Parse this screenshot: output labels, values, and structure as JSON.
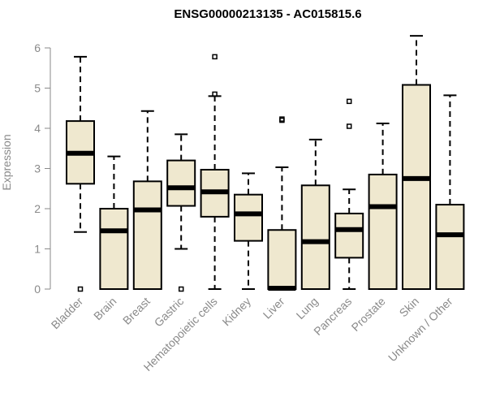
{
  "chart_data": {
    "type": "boxplot",
    "title": "ENSG00000213135 - AC015815.6",
    "ylabel": "Expression",
    "xlabel": "",
    "ylim": [
      0,
      6.3
    ],
    "yticks": [
      0,
      1,
      2,
      3,
      4,
      5,
      6
    ],
    "colors": {
      "box_fill": "#efe8cf",
      "box_stroke": "#000000",
      "axis": "#8a8a8a"
    },
    "categories": [
      "Bladder",
      "Brain",
      "Breast",
      "Gastric",
      "Hematopoietic cells",
      "Kidney",
      "Liver",
      "Lung",
      "Pancreas",
      "Prostate",
      "Skin",
      "Unknown / Other"
    ],
    "boxes": [
      {
        "category": "Bladder",
        "whisker_low": 1.42,
        "q1": 2.62,
        "median": 3.38,
        "q3": 4.18,
        "whisker_high": 5.78,
        "outliers": [
          0.0
        ]
      },
      {
        "category": "Brain",
        "whisker_low": 0.0,
        "q1": 0.0,
        "median": 1.45,
        "q3": 2.0,
        "whisker_high": 3.3,
        "outliers": []
      },
      {
        "category": "Breast",
        "whisker_low": 0.0,
        "q1": 0.0,
        "median": 1.97,
        "q3": 2.68,
        "whisker_high": 4.43,
        "outliers": []
      },
      {
        "category": "Gastric",
        "whisker_low": 1.0,
        "q1": 2.07,
        "median": 2.52,
        "q3": 3.2,
        "whisker_high": 3.85,
        "outliers": [
          0.0
        ]
      },
      {
        "category": "Hematopoietic cells",
        "whisker_low": 0.0,
        "q1": 1.8,
        "median": 2.42,
        "q3": 2.97,
        "whisker_high": 4.8,
        "outliers": [
          5.78,
          4.85
        ]
      },
      {
        "category": "Kidney",
        "whisker_low": 0.0,
        "q1": 1.2,
        "median": 1.87,
        "q3": 2.35,
        "whisker_high": 2.88,
        "outliers": []
      },
      {
        "category": "Liver",
        "whisker_low": 0.0,
        "q1": 0.0,
        "median": 0.02,
        "q3": 1.47,
        "whisker_high": 3.03,
        "outliers": [
          4.2,
          4.23
        ]
      },
      {
        "category": "Lung",
        "whisker_low": 0.0,
        "q1": 0.0,
        "median": 1.18,
        "q3": 2.58,
        "whisker_high": 3.72,
        "outliers": []
      },
      {
        "category": "Pancreas",
        "whisker_low": 0.0,
        "q1": 0.78,
        "median": 1.48,
        "q3": 1.88,
        "whisker_high": 2.48,
        "outliers": [
          4.67,
          4.05
        ]
      },
      {
        "category": "Prostate",
        "whisker_low": 0.0,
        "q1": 0.0,
        "median": 2.05,
        "q3": 2.85,
        "whisker_high": 4.12,
        "outliers": []
      },
      {
        "category": "Skin",
        "whisker_low": 0.0,
        "q1": 0.0,
        "median": 2.75,
        "q3": 5.08,
        "whisker_high": 6.3,
        "outliers": []
      },
      {
        "category": "Unknown / Other",
        "whisker_low": 0.0,
        "q1": 0.0,
        "median": 1.35,
        "q3": 2.1,
        "whisker_high": 4.82,
        "outliers": []
      }
    ]
  }
}
